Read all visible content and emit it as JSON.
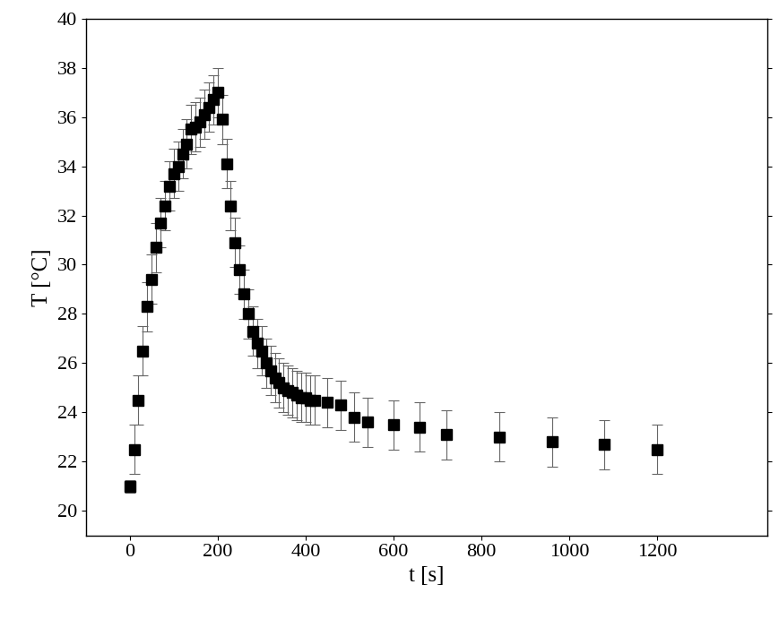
{
  "chart_data": {
    "type": "scatter",
    "x_label": "t [s]",
    "y_label": "T [°C]",
    "x": [
      0,
      10,
      20,
      30,
      40,
      50,
      60,
      70,
      80,
      90,
      100,
      110,
      120,
      130,
      140,
      150,
      160,
      170,
      180,
      190,
      200,
      210,
      220,
      230,
      240,
      250,
      260,
      270,
      280,
      290,
      300,
      310,
      320,
      330,
      340,
      350,
      360,
      370,
      380,
      390,
      400,
      410,
      420,
      450,
      480,
      510,
      540,
      600,
      660,
      720,
      840,
      960,
      1080,
      1200
    ],
    "values": [
      21.0,
      22.5,
      24.5,
      26.5,
      28.3,
      29.4,
      30.7,
      31.7,
      32.4,
      33.2,
      33.7,
      34.0,
      34.5,
      34.9,
      35.5,
      35.6,
      35.8,
      36.1,
      36.4,
      36.7,
      37.0,
      35.9,
      34.1,
      32.4,
      30.9,
      29.8,
      28.8,
      28.0,
      27.3,
      26.8,
      26.5,
      26.0,
      25.7,
      25.4,
      25.2,
      25.0,
      24.9,
      24.8,
      24.7,
      24.6,
      24.6,
      24.5,
      24.5,
      24.4,
      24.3,
      23.8,
      23.6,
      23.5,
      23.4,
      23.1,
      23.0,
      22.8,
      22.7,
      22.5
    ],
    "errors": [
      0.25,
      1.0,
      1.0,
      1.0,
      1.0,
      1.0,
      1.0,
      1.0,
      1.0,
      1.0,
      1.0,
      1.0,
      1.0,
      1.0,
      1.0,
      1.0,
      1.0,
      1.0,
      1.0,
      1.0,
      1.0,
      1.0,
      1.0,
      1.0,
      1.0,
      1.0,
      1.0,
      1.0,
      1.0,
      1.0,
      1.0,
      1.0,
      1.0,
      1.0,
      1.0,
      1.0,
      1.0,
      1.0,
      1.0,
      1.0,
      1.0,
      1.0,
      1.0,
      1.0,
      1.0,
      1.0,
      1.0,
      1.0,
      1.0,
      1.0,
      1.0,
      1.0,
      1.0,
      1.0
    ],
    "color": "#000000",
    "marker": "square",
    "xlim": [
      -100,
      1450
    ],
    "xticks": [
      0,
      200,
      400,
      600,
      800,
      1000,
      1200
    ],
    "ylim": [
      19,
      40
    ],
    "yticks": [
      20,
      22,
      24,
      26,
      28,
      30,
      32,
      34,
      36,
      38,
      40
    ],
    "grid": false
  }
}
